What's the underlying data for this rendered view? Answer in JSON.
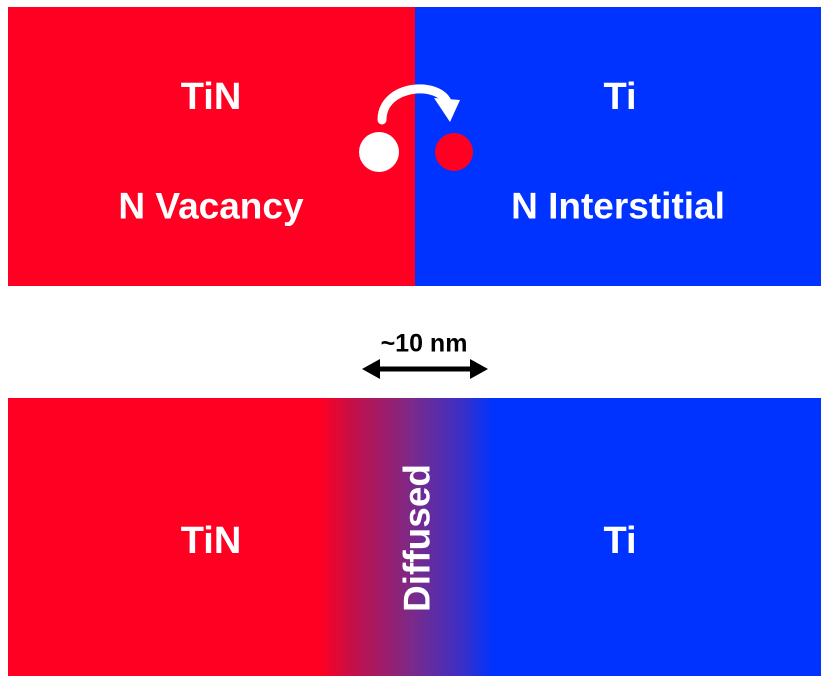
{
  "colors": {
    "tin_red": "#ff0022",
    "ti_blue": "#0033ff",
    "diffused_mid": "#7a2a8a",
    "text": "#ffffff",
    "scale_text": "#000000"
  },
  "top_panel": {
    "left_material": "TiN",
    "left_defect": "N Vacancy",
    "right_material": "Ti",
    "right_defect": "N Interstitial",
    "hop_arrow_icon": "curved-arrow-icon",
    "vacancy_marker_icon": "white-circle-icon",
    "interstitial_marker_icon": "red-circle-icon"
  },
  "scale_bar": {
    "label": "~10 nm",
    "arrow_icon": "double-headed-arrow-icon"
  },
  "bottom_panel": {
    "left_material": "TiN",
    "middle_region": "Diffused",
    "right_material": "Ti"
  }
}
